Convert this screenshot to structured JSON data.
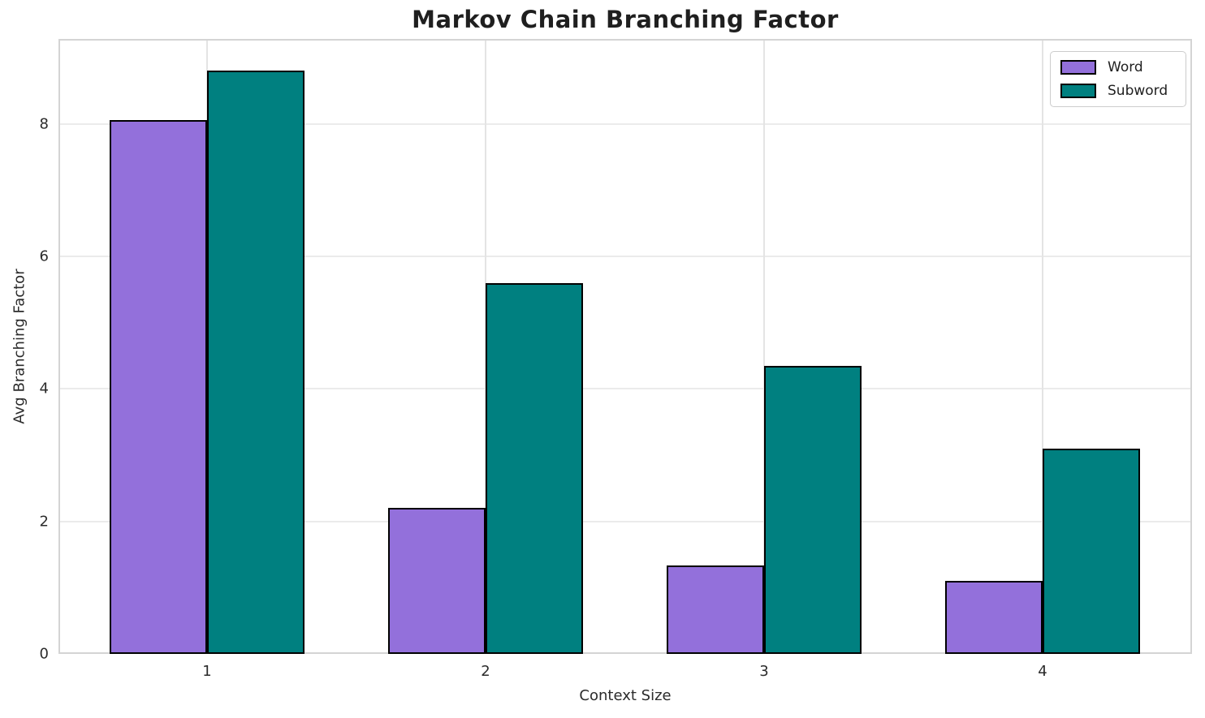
{
  "chart_data": {
    "type": "bar",
    "title": "Markov Chain Branching Factor",
    "xlabel": "Context Size",
    "ylabel": "Avg Branching Factor",
    "categories": [
      "1",
      "2",
      "3",
      "4"
    ],
    "series": [
      {
        "name": "Word",
        "color": "#9370DB",
        "values": [
          8.05,
          2.2,
          1.33,
          1.1
        ]
      },
      {
        "name": "Subword",
        "color": "#008080",
        "values": [
          8.8,
          5.6,
          4.35,
          3.1
        ]
      }
    ],
    "yticks": [
      0,
      2,
      4,
      6,
      8
    ],
    "ylim": [
      0,
      9.28
    ],
    "bar_edge_color": "#000000",
    "grid": true,
    "legend_position": "upper right"
  }
}
